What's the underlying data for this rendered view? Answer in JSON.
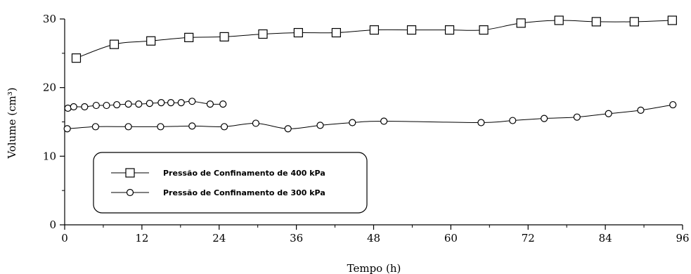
{
  "chart_data": {
    "type": "line",
    "title": "",
    "xlabel": "Tempo (h)",
    "ylabel": "Volume (cm³)",
    "xlim": [
      0,
      96
    ],
    "ylim": [
      0,
      30
    ],
    "xticks": [
      0,
      12,
      24,
      36,
      48,
      60,
      72,
      84,
      96
    ],
    "yticks": [
      0,
      10,
      20,
      30
    ],
    "grid": false,
    "legend_position": "lower-left",
    "series": [
      {
        "name": "Pressão de Confinamento de 400 kPa",
        "marker": "square",
        "x": [
          1.8,
          7.7,
          13.4,
          19.3,
          24.8,
          30.8,
          36.3,
          42.2,
          48.1,
          53.9,
          59.8,
          65.1,
          70.9,
          76.8,
          82.6,
          88.5,
          94.4
        ],
        "y": [
          24.3,
          26.3,
          26.8,
          27.3,
          27.4,
          27.8,
          28.0,
          28.0,
          28.4,
          28.4,
          28.4,
          28.4,
          29.4,
          29.8,
          29.6,
          29.6,
          29.8
        ]
      },
      {
        "name": "Pressão de Confinamento de 300 kPa",
        "marker": "circle",
        "x": [
          0.4,
          4.8,
          9.9,
          14.9,
          19.8,
          24.8,
          29.7,
          34.7,
          39.7,
          44.7,
          49.6,
          64.7,
          69.6,
          74.5,
          79.6,
          84.5,
          89.5,
          94.5
        ],
        "y": [
          14.0,
          14.3,
          14.3,
          14.3,
          14.4,
          14.3,
          14.8,
          14.0,
          14.5,
          14.9,
          15.1,
          14.9,
          15.2,
          15.5,
          15.7,
          16.2,
          16.7,
          17.5
        ]
      },
      {
        "name": "",
        "marker": "circle",
        "x": [
          0.5,
          1.4,
          3.1,
          4.9,
          6.5,
          8.1,
          9.9,
          11.5,
          13.2,
          15.0,
          16.5,
          18.1,
          19.8,
          22.6,
          24.6
        ],
        "y": [
          17.0,
          17.2,
          17.2,
          17.4,
          17.4,
          17.5,
          17.6,
          17.6,
          17.7,
          17.8,
          17.8,
          17.8,
          18.0,
          17.6,
          17.6
        ]
      }
    ]
  }
}
